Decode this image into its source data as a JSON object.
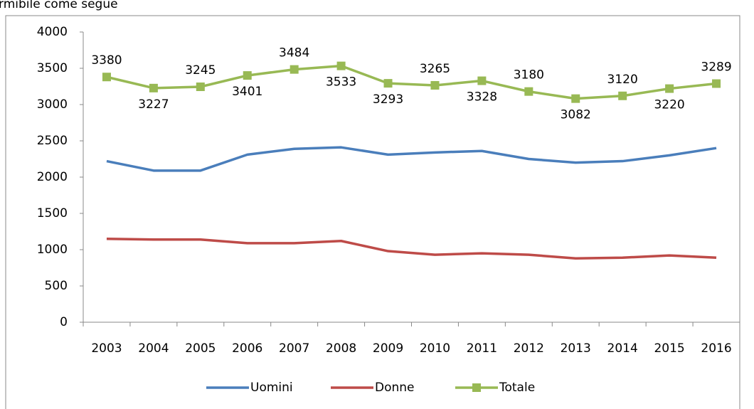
{
  "caption": "rmibile come segue",
  "chart_data": {
    "type": "line",
    "categories": [
      "2003",
      "2004",
      "2005",
      "2006",
      "2007",
      "2008",
      "2009",
      "2010",
      "2011",
      "2012",
      "2013",
      "2014",
      "2015",
      "2016"
    ],
    "series": [
      {
        "name": "Uomini",
        "color": "#4a7ebb",
        "values": [
          2220,
          2090,
          2090,
          2310,
          2390,
          2410,
          2310,
          2340,
          2360,
          2250,
          2200,
          2220,
          2300,
          2400
        ]
      },
      {
        "name": "Donne",
        "color": "#be4b48",
        "values": [
          1150,
          1140,
          1140,
          1090,
          1090,
          1120,
          980,
          930,
          950,
          930,
          880,
          890,
          920,
          890
        ]
      },
      {
        "name": "Totale",
        "color": "#98b954",
        "marker": "square",
        "data_labels": true,
        "values": [
          3380,
          3227,
          3245,
          3401,
          3484,
          3533,
          3293,
          3265,
          3328,
          3180,
          3082,
          3120,
          3220,
          3289
        ]
      }
    ],
    "ylim": [
      0,
      4000
    ],
    "yticks": [
      0,
      500,
      1000,
      1500,
      2000,
      2500,
      3000,
      3500,
      4000
    ],
    "grid": false,
    "legend": "bottom"
  }
}
